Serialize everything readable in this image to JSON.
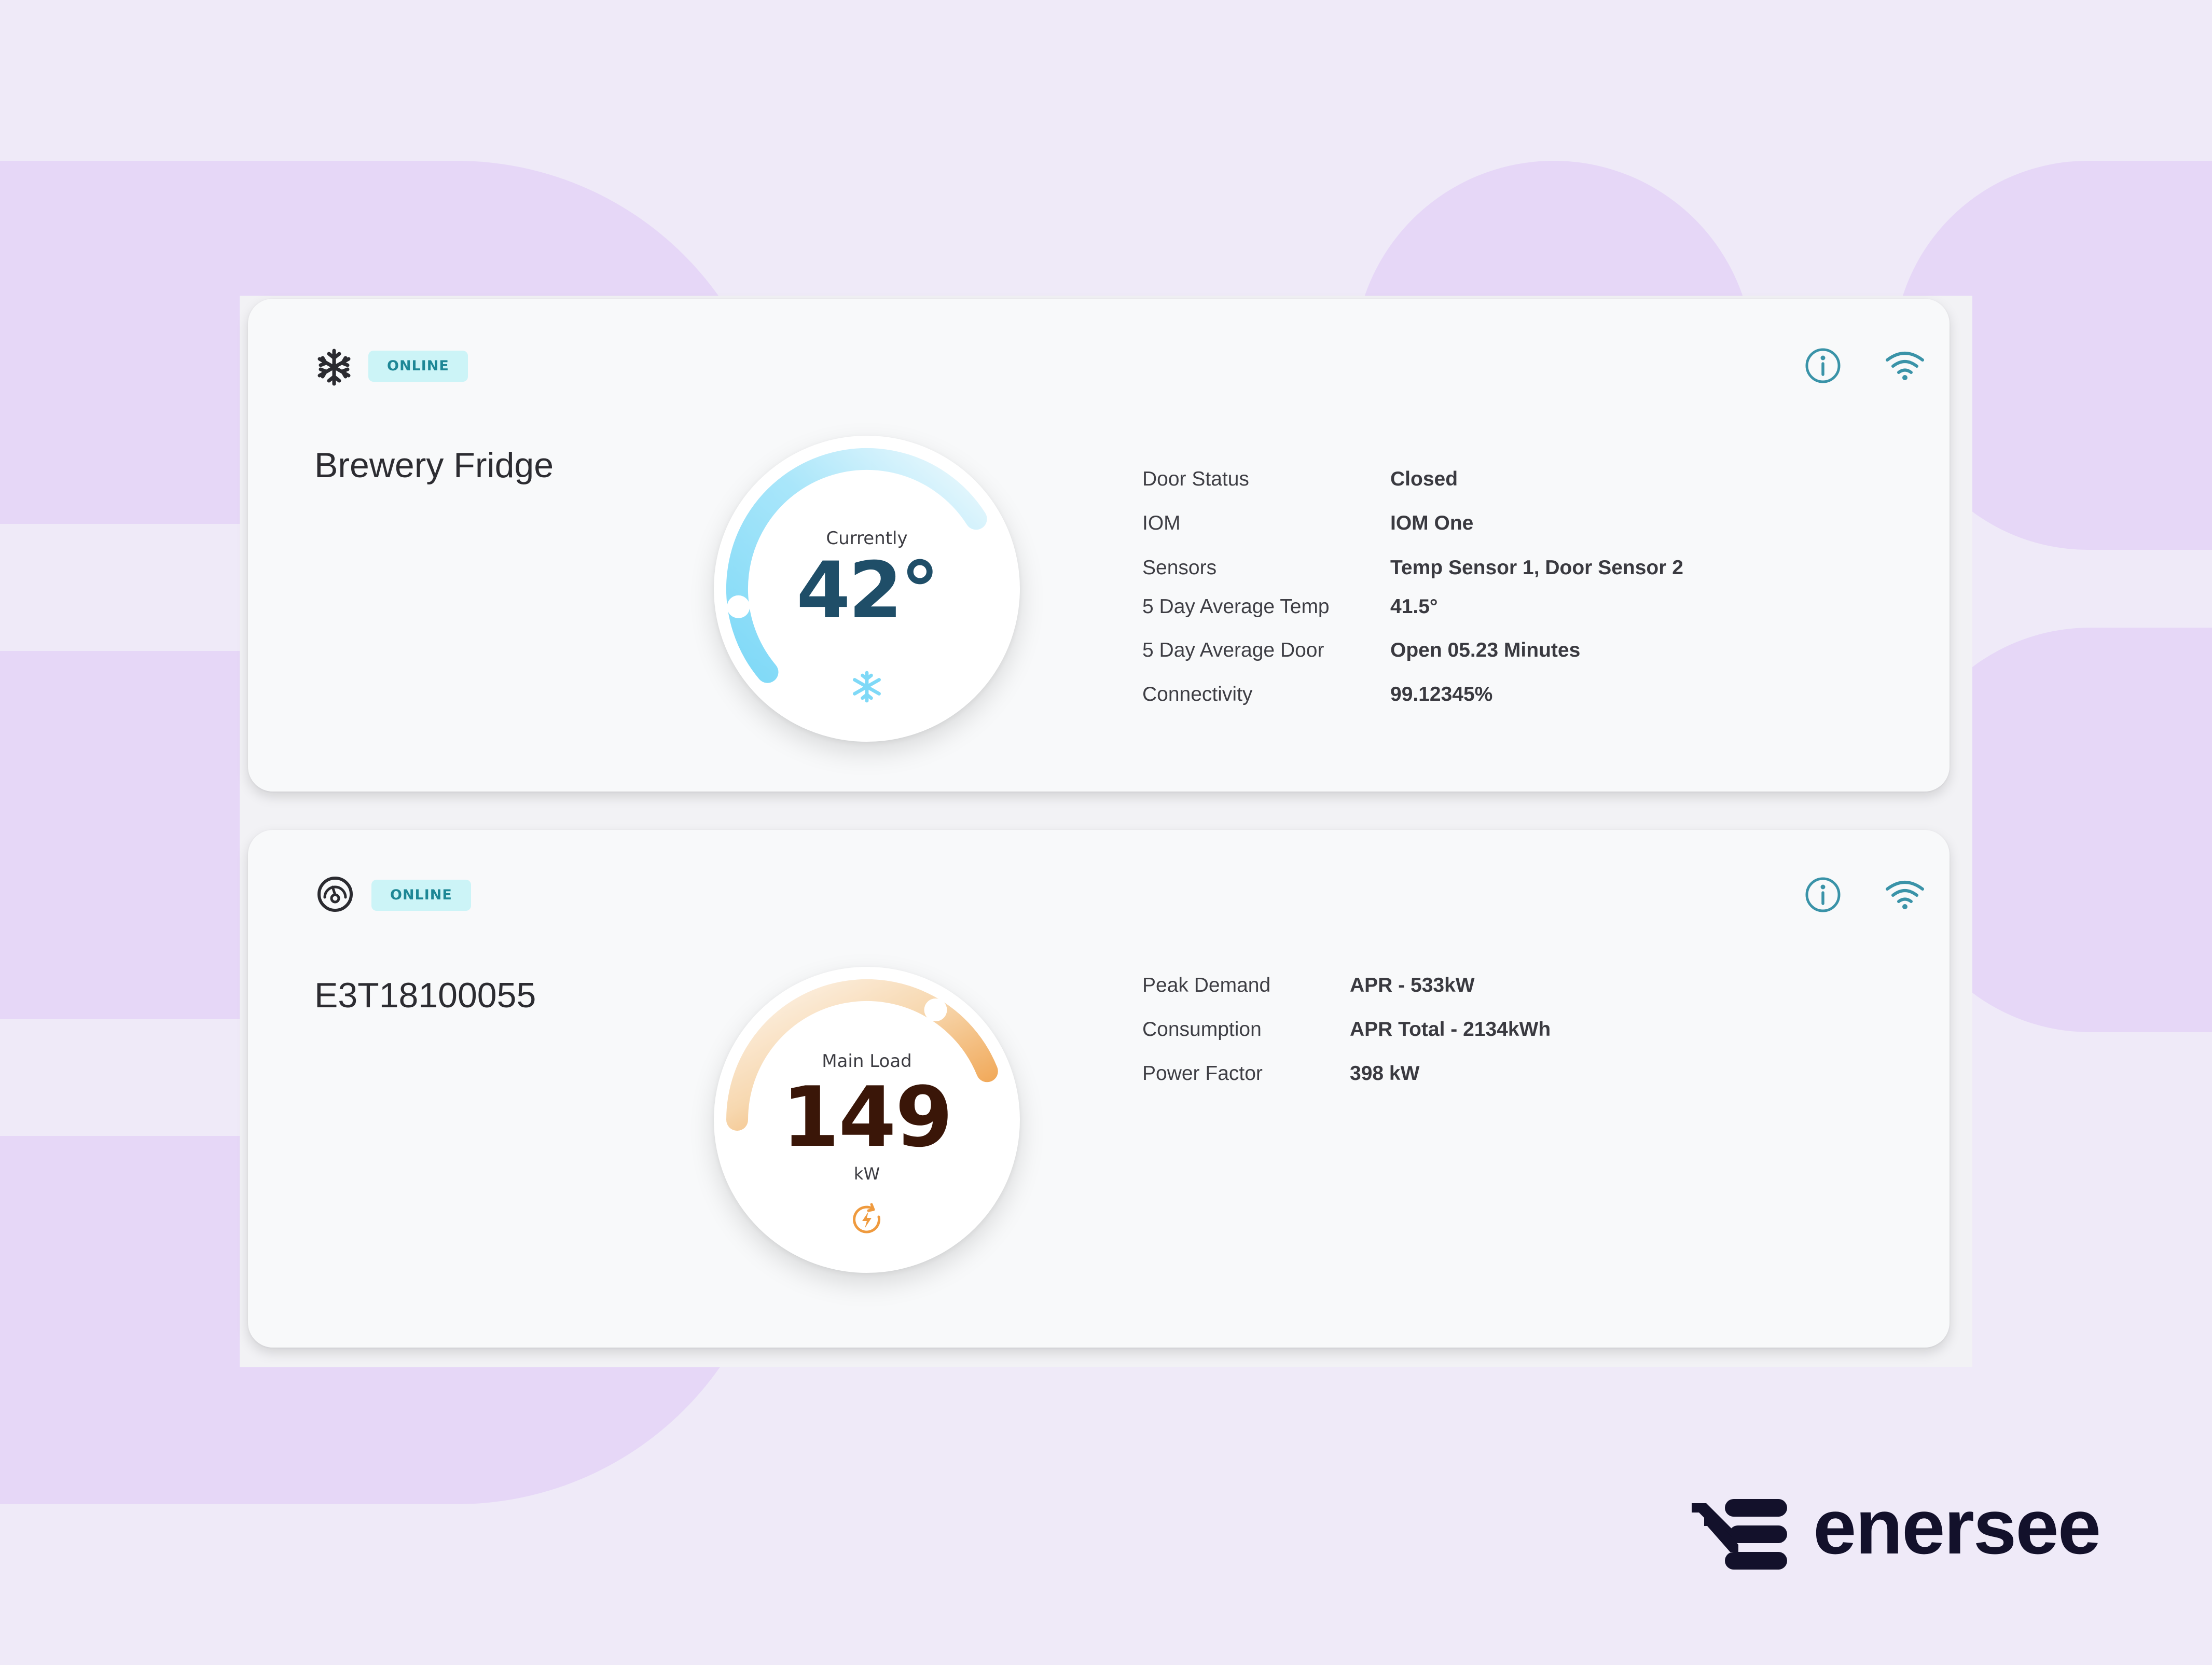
{
  "colors": {
    "background": "#efeaf8",
    "blob": "#e6d7f7",
    "badge_bg": "#ccf4f7",
    "badge_text": "#1d8796",
    "icon_teal": "#3a93a8",
    "cold_blue": "#7fd9f7",
    "load_orange": "#ef9a3e",
    "temp_value": "#1f4e68",
    "load_value": "#3a1608"
  },
  "devices": [
    {
      "type_icon": "snowflake-icon",
      "status": "ONLINE",
      "name": "Brewery Fridge",
      "gauge": {
        "label": "Currently",
        "value": "42°",
        "unit": "",
        "icon": "snowflake-icon",
        "progress": 0.62
      },
      "properties": [
        {
          "key": "Door Status",
          "value": "Closed"
        },
        {
          "key": "IOM",
          "value": "IOM One"
        },
        {
          "key": "Sensors",
          "value": "Temp Sensor 1, Door Sensor 2"
        },
        {
          "key": "5 Day Average Temp",
          "value": "41.5°"
        },
        {
          "key": "5 Day Average Door",
          "value": "Open 05.23 Minutes"
        },
        {
          "key": "Connectivity",
          "value": "99.12345%"
        }
      ]
    },
    {
      "type_icon": "power-meter-icon",
      "status": "ONLINE",
      "name": "E3T18100055",
      "gauge": {
        "label": "Main Load",
        "value": "149",
        "unit": "kW",
        "icon": "power-refresh-icon",
        "progress": 0.6
      },
      "properties": [
        {
          "key": "Peak Demand",
          "value": "APR - 533kW"
        },
        {
          "key": "Consumption",
          "value": "APR Total - 2134kWh"
        },
        {
          "key": "Power Factor",
          "value": "398 kW"
        }
      ]
    }
  ],
  "brand": {
    "name": "enersee",
    "logo_icon": "enersee-logo-icon"
  }
}
